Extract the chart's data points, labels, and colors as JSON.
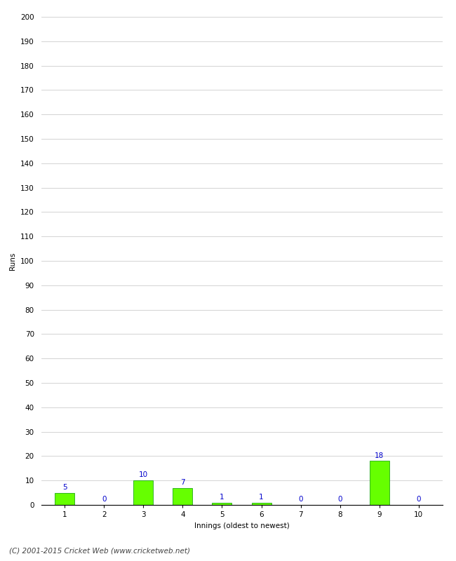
{
  "xlabel": "Innings (oldest to newest)",
  "ylabel": "Runs",
  "categories": [
    1,
    2,
    3,
    4,
    5,
    6,
    7,
    8,
    9,
    10
  ],
  "values": [
    5,
    0,
    10,
    7,
    1,
    1,
    0,
    0,
    18,
    0
  ],
  "bar_color": "#66ff00",
  "bar_edge_color": "#009900",
  "label_color": "#0000cc",
  "ylim": [
    0,
    200
  ],
  "yticks": [
    0,
    10,
    20,
    30,
    40,
    50,
    60,
    70,
    80,
    90,
    100,
    110,
    120,
    130,
    140,
    150,
    160,
    170,
    180,
    190,
    200
  ],
  "background_color": "#ffffff",
  "grid_color": "#cccccc",
  "footer_text": "(C) 2001-2015 Cricket Web (www.cricketweb.net)",
  "label_fontsize": 7.5,
  "axis_fontsize": 7.5,
  "footer_fontsize": 7.5
}
